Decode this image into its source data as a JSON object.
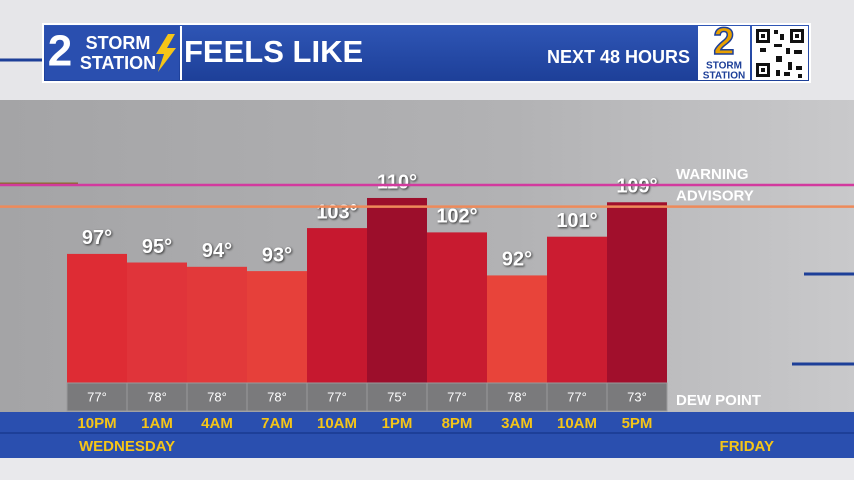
{
  "branding": {
    "left_logo": {
      "number": "2",
      "line1": "STORM",
      "line2": "STATION"
    },
    "right_logo": {
      "number": "2",
      "line1": "STORM",
      "line2": "STATION"
    }
  },
  "chart_data": {
    "type": "bar",
    "title": "FEELS LIKE",
    "subtitle": "NEXT 48 HOURS",
    "categories": [
      "10PM",
      "1AM",
      "4AM",
      "7AM",
      "10AM",
      "1PM",
      "8PM",
      "3AM",
      "10AM",
      "5PM"
    ],
    "values": [
      97,
      95,
      94,
      93,
      103,
      110,
      102,
      92,
      101,
      109
    ],
    "value_labels": [
      "97°",
      "95°",
      "94°",
      "93°",
      "103°",
      "110°",
      "102°",
      "92°",
      "101°",
      "109°"
    ],
    "colors": [
      "#de2c34",
      "#e0343a",
      "#e2393a",
      "#e6403a",
      "#c6182f",
      "#9c0e2b",
      "#c81b30",
      "#e8443a",
      "#cb1c31",
      "#a10f2c"
    ],
    "ylim": [
      67,
      133
    ],
    "thresholds": [
      {
        "name": "WARNING",
        "value": 113,
        "color": "#d23a9e"
      },
      {
        "name": "ADVISORY",
        "value": 108,
        "color": "#ee8a5a"
      }
    ],
    "dew_point": {
      "name": "DEW POINT",
      "values": [
        77,
        78,
        78,
        78,
        77,
        75,
        77,
        78,
        77,
        73
      ],
      "value_labels": [
        "77°",
        "78°",
        "78°",
        "78°",
        "77°",
        "75°",
        "77°",
        "78°",
        "77°",
        "73°"
      ]
    },
    "days": [
      "WEDNESDAY",
      "FRIDAY"
    ]
  }
}
